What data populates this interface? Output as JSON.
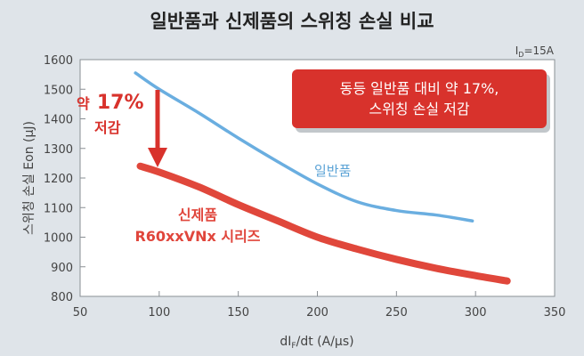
{
  "chart_data": {
    "type": "line",
    "title": "일반품과 신제품의 스위칭 손실 비교",
    "condition": "ID=15A",
    "condition_main": "I",
    "condition_sub": "D",
    "condition_rest": "=15A",
    "xlabel": "dIF/dt (A/μs)",
    "xlabel_prefix": "dI",
    "xlabel_sub": "F",
    "xlabel_suffix": "/dt (A/μs)",
    "ylabel": "스위칭 손실 Eon (μJ)",
    "xlim": [
      50,
      350
    ],
    "ylim": [
      800,
      1600
    ],
    "x_ticks": [
      "50",
      "100",
      "150",
      "200",
      "250",
      "300",
      "350"
    ],
    "y_ticks": [
      "800",
      "900",
      "1000",
      "1100",
      "1200",
      "1300",
      "1400",
      "1500",
      "1600"
    ],
    "grid": false,
    "series": [
      {
        "name": "일반품",
        "color": "#6aaee0",
        "x": [
          85,
          100,
          125,
          150,
          175,
          200,
          225,
          250,
          275,
          298
        ],
        "y": [
          1555,
          1500,
          1420,
          1335,
          1255,
          1180,
          1120,
          1090,
          1075,
          1055
        ]
      },
      {
        "name": "신제품 R60xxVNx 시리즈",
        "name_line1": "신제품",
        "name_line2": "R60xxVNx 시리즈",
        "color": "#e0473b",
        "x": [
          88,
          100,
          125,
          150,
          175,
          200,
          225,
          250,
          275,
          300,
          320
        ],
        "y": [
          1240,
          1220,
          1170,
          1110,
          1055,
          1000,
          960,
          925,
          895,
          870,
          852
        ]
      }
    ],
    "annotations": {
      "reduction_prefix": "약",
      "reduction_value": "17%",
      "reduction_suffix": "저감",
      "callout_line1": "동등 일반품 대비 약 17%,",
      "callout_line2": "스위칭 손실 저감"
    }
  },
  "colors": {
    "background": "#dfe4e9",
    "plot_background": "#ffffff",
    "accent_red": "#d8322c",
    "callout_bg": "#d8322c"
  }
}
